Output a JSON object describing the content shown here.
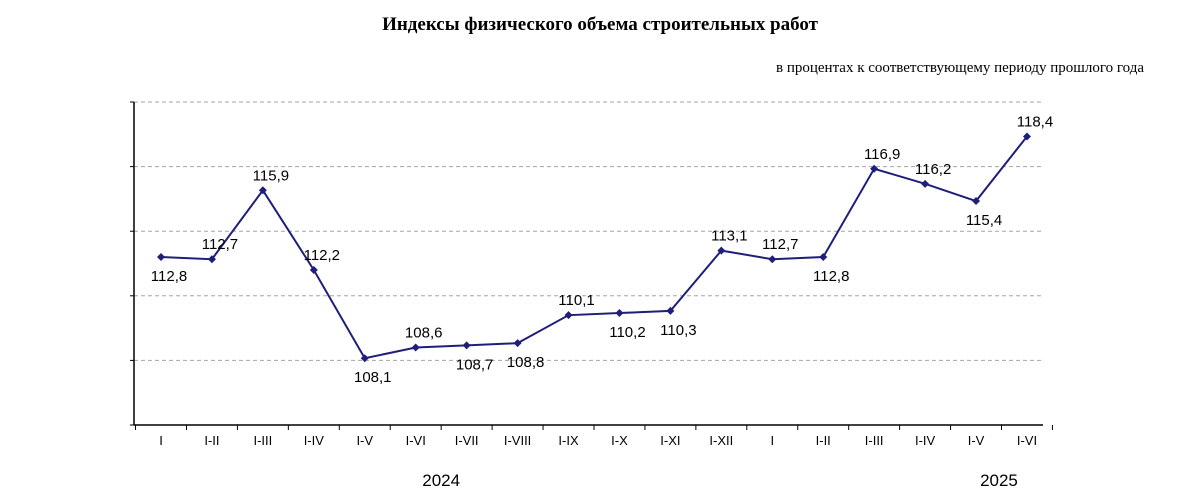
{
  "chart_data": {
    "type": "line",
    "title": "Индексы физического объема строительных работ",
    "subtitle": "в процентах к соответствующему периоду прошлого года",
    "xlabel": "",
    "ylabel": "",
    "categories": [
      "I",
      "I-II",
      "I-III",
      "I-IV",
      "I-V",
      "I-VI",
      "I-VII",
      "I-VIII",
      "I-IX",
      "I-X",
      "I-XI",
      "I-XII",
      "I",
      "I-II",
      "I-III",
      "I-IV",
      "I-V",
      "I-VI"
    ],
    "year_groups": [
      {
        "label": "2024",
        "start": 0,
        "end": 11
      },
      {
        "label": "2025",
        "start": 12,
        "end": 17
      }
    ],
    "series": [
      {
        "values": [
          112.8,
          112.7,
          115.9,
          112.2,
          108.1,
          108.6,
          108.7,
          108.8,
          110.1,
          110.2,
          110.3,
          113.1,
          112.7,
          112.8,
          116.9,
          116.2,
          115.4,
          118.4
        ],
        "labels": [
          "112,8",
          "112,7",
          "115,9",
          "112,2",
          "108,1",
          "108,6",
          "108,7",
          "108,8",
          "110,1",
          "110,2",
          "110,3",
          "113,1",
          "112,7",
          "112,8",
          "116,9",
          "116,2",
          "115,4",
          "118,4"
        ],
        "label_positions": [
          "below",
          "above",
          "above",
          "above",
          "below",
          "above",
          "below",
          "below",
          "above",
          "below",
          "below",
          "above",
          "above",
          "below",
          "above",
          "above",
          "below",
          "above"
        ]
      }
    ],
    "ylim": [
      105,
      120
    ],
    "y_gridlines": [
      108,
      111,
      114,
      117,
      120
    ],
    "grid": true,
    "colors": {
      "line": "#1f1f7a",
      "grid": "#a6a6a6",
      "axis": "#000000"
    }
  }
}
